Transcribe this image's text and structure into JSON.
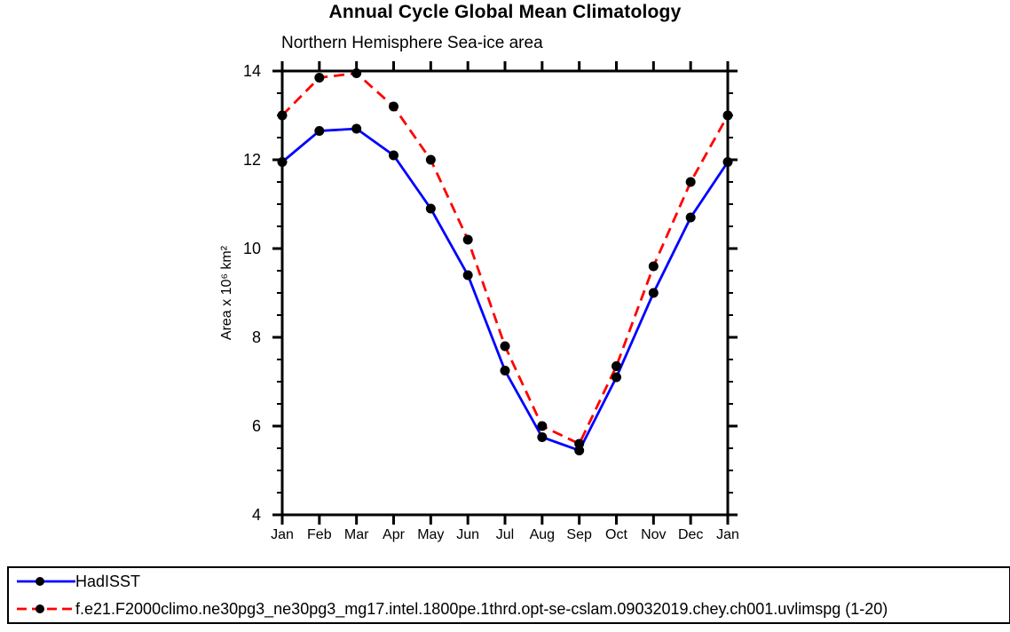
{
  "title": "Annual Cycle Global Mean Climatology",
  "subtitle": "Northern Hemisphere Sea-ice area",
  "colors": {
    "frame": "#000000",
    "marker": "#000000",
    "hadisst_line": "#0000ff",
    "model_line": "#ff0000"
  },
  "chart_data": {
    "type": "line",
    "title": "Annual Cycle Global Mean Climatology",
    "subtitle": "Northern Hemisphere Sea-ice area",
    "xlabel": "",
    "ylabel": "Area x 10⁶ km²",
    "ylim": [
      4,
      14
    ],
    "ytick_major": [
      4,
      6,
      8,
      10,
      12,
      14
    ],
    "ytick_labels": [
      "4",
      "6",
      "8",
      "10",
      "12",
      "14"
    ],
    "ytick_minor_step": 0.5,
    "grid": "off",
    "marker": "filled-circle",
    "marker_color": "#000000",
    "legend_position": "bottom-left-box",
    "categories": [
      "Jan",
      "Feb",
      "Mar",
      "Apr",
      "May",
      "Jun",
      "Jul",
      "Aug",
      "Sep",
      "Oct",
      "Nov",
      "Dec",
      "Jan"
    ],
    "series": [
      {
        "name": "HadISST",
        "color": "#0000ff",
        "style": "solid",
        "values": [
          11.95,
          12.65,
          12.7,
          12.1,
          10.9,
          9.4,
          7.25,
          5.75,
          5.45,
          7.1,
          9.0,
          10.7,
          11.95
        ]
      },
      {
        "name": "f.e21.F2000climo.ne30pg3_ne30pg3_mg17.intel.1800pe.1thrd.opt-se-cslam.09032019.chey.ch001.uvlimspg (1-20)",
        "color": "#ff0000",
        "style": "dashed",
        "values": [
          13.0,
          13.85,
          13.95,
          13.2,
          12.0,
          10.2,
          7.8,
          6.0,
          5.6,
          7.35,
          9.6,
          11.5,
          13.0
        ]
      }
    ]
  }
}
